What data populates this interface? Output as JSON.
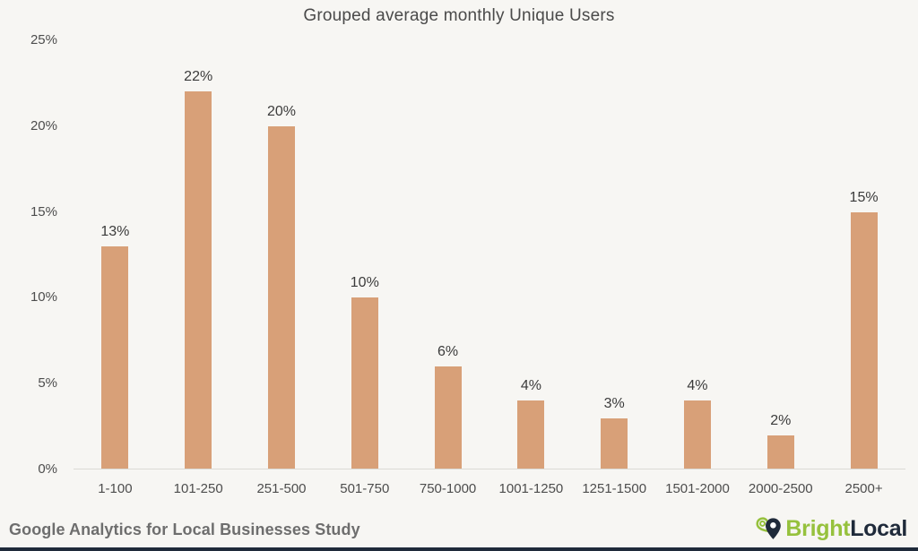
{
  "chart_data": {
    "type": "bar",
    "title": "Grouped average monthly Unique Users",
    "categories": [
      "1-100",
      "101-250",
      "251-500",
      "501-750",
      "750-1000",
      "1001-1250",
      "1251-1500",
      "1501-2000",
      "2000-2500",
      "2500+"
    ],
    "values": [
      13,
      22,
      20,
      10,
      6,
      4,
      3,
      4,
      2,
      15
    ],
    "value_labels": [
      "13%",
      "22%",
      "20%",
      "10%",
      "6%",
      "4%",
      "3%",
      "4%",
      "2%",
      "15%"
    ],
    "xlabel": "",
    "ylabel": "",
    "ylim": [
      0,
      25
    ],
    "y_tick_values": [
      0,
      5,
      10,
      15,
      20,
      25
    ],
    "y_tick_labels": [
      "0%",
      "5%",
      "10%",
      "15%",
      "20%",
      "25%"
    ],
    "grid": false,
    "legend_position": "none",
    "bar_color": "#d8a078"
  },
  "footer": {
    "source_text": "Google Analytics for Local Businesses Study",
    "logo": {
      "brand_first": "Bright",
      "brand_second": "Local"
    }
  },
  "colors": {
    "background": "#f7f6f3",
    "bar": "#d8a078",
    "brand_green": "#96c13d",
    "brand_navy": "#1f2a3a",
    "title_text": "#4a4a4a",
    "axis_text": "#4d4d4d",
    "caption_text": "#6e6e6e"
  }
}
